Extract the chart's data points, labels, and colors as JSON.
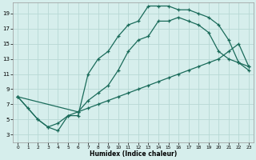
{
  "xlabel": "Humidex (Indice chaleur)",
  "bg_color": "#d6eeec",
  "grid_color": "#b8d8d5",
  "line_color": "#1a6b5a",
  "xlim": [
    -0.5,
    23.5
  ],
  "ylim": [
    2,
    20.5
  ],
  "xticks": [
    0,
    1,
    2,
    3,
    4,
    5,
    6,
    7,
    8,
    9,
    10,
    11,
    12,
    13,
    14,
    15,
    16,
    17,
    18,
    19,
    20,
    21,
    22,
    23
  ],
  "yticks": [
    3,
    5,
    7,
    9,
    11,
    13,
    15,
    17,
    19
  ],
  "line1_x": [
    0,
    1,
    2,
    3,
    4,
    5,
    6,
    7,
    8,
    9,
    10,
    11,
    12,
    13,
    14,
    15,
    16,
    17,
    18,
    19,
    20,
    21,
    22,
    23
  ],
  "line1_y": [
    8,
    6.5,
    5,
    4,
    3.5,
    5.5,
    5.5,
    11,
    13,
    14,
    16,
    17.5,
    18,
    20,
    20,
    20,
    19.5,
    19.5,
    19,
    18.5,
    17.5,
    15.5,
    12.5,
    11.5
  ],
  "line2_x": [
    0,
    2,
    3,
    4,
    5,
    6,
    7,
    8,
    9,
    10,
    11,
    12,
    13,
    14,
    15,
    16,
    17,
    18,
    19,
    20,
    21,
    22,
    23
  ],
  "line2_y": [
    8,
    5,
    4,
    4.5,
    5.5,
    6,
    7.5,
    8.5,
    9.5,
    11.5,
    14,
    15.5,
    16,
    18,
    18,
    18.5,
    18,
    17.5,
    16.5,
    14,
    13,
    12.5,
    12
  ],
  "line3_x": [
    0,
    6,
    7,
    8,
    9,
    10,
    11,
    12,
    13,
    14,
    15,
    16,
    17,
    18,
    19,
    20,
    21,
    22,
    23
  ],
  "line3_y": [
    8,
    6,
    6.5,
    7,
    7.5,
    8,
    8.5,
    9,
    9.5,
    10,
    10.5,
    11,
    11.5,
    12,
    12.5,
    13,
    14,
    15,
    12
  ]
}
